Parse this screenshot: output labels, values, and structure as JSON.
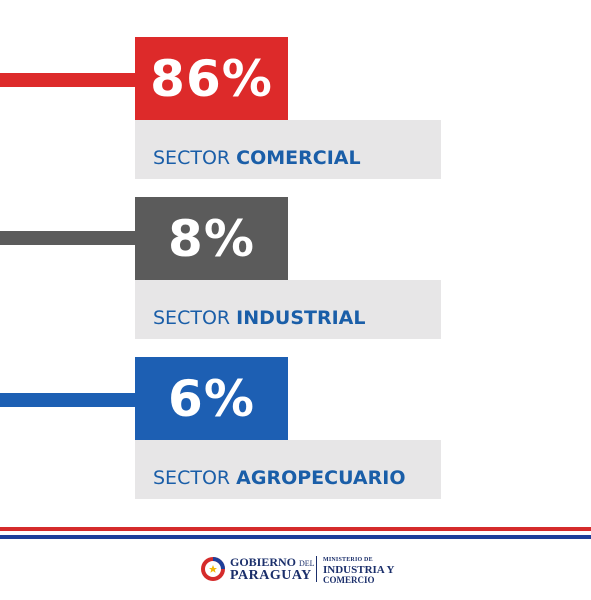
{
  "stats": [
    {
      "value": "86%",
      "label_prefix": "SECTOR",
      "label_bold": "COMERCIAL",
      "color": "#dd2a2a"
    },
    {
      "value": "8%",
      "label_prefix": "SECTOR",
      "label_bold": "INDUSTRIAL",
      "color": "#5b5b5b"
    },
    {
      "value": "6%",
      "label_prefix": "SECTOR",
      "label_bold": "AGROPECUARIO",
      "color": "#1d5fb3"
    }
  ],
  "footer": {
    "gov_line1": "GOBIERNO",
    "gov_line1_small": "DEL",
    "gov_line2": "PARAGUAY",
    "ministry_line1": "MINISTERIO DE",
    "ministry_line2": "INDUSTRIA Y",
    "ministry_line3": "COMERCIO"
  },
  "colors": {
    "red": "#d52b2b",
    "blue": "#1d3f9a",
    "label_text": "#1a5ea8",
    "label_bg": "#e7e6e7"
  }
}
